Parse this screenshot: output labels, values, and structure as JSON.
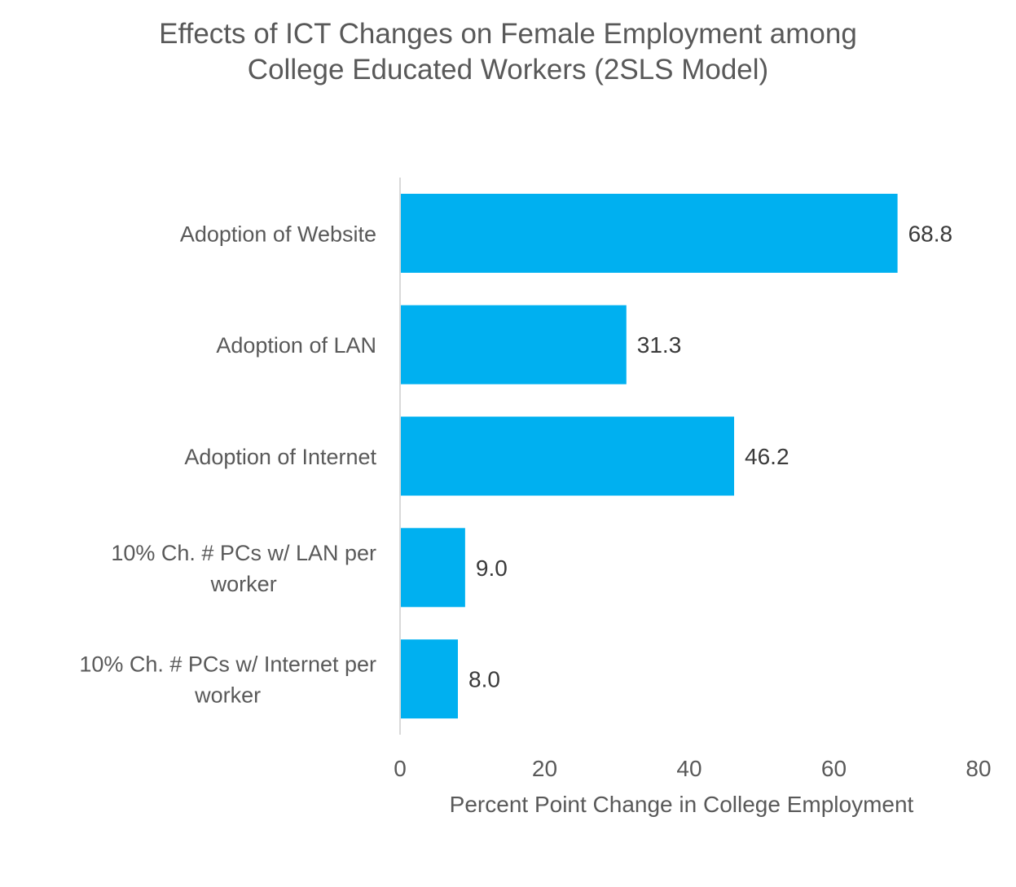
{
  "chart_data": {
    "type": "bar",
    "orientation": "horizontal",
    "title_lines": [
      "Effects of ICT Changes on Female Employment among",
      "College Educated Workers (2SLS Model)"
    ],
    "categories": [
      [
        "Adoption of Website"
      ],
      [
        "Adoption of LAN"
      ],
      [
        "Adoption of Internet"
      ],
      [
        "10% Ch. # PCs w/ LAN per",
        "worker"
      ],
      [
        "10% Ch. # PCs w/ Internet per",
        "worker"
      ]
    ],
    "values": [
      68.8,
      31.3,
      46.2,
      9.0,
      8.0
    ],
    "value_labels": [
      "68.8",
      "31.3",
      "46.2",
      "9.0",
      "8.0"
    ],
    "xlim": [
      0,
      80
    ],
    "xticks": [
      "0",
      "20",
      "40",
      "60",
      "80"
    ],
    "xlabel": "Percent Point Change in College Employment",
    "ylabel": "",
    "grid": false,
    "legend": "none",
    "bar_color": "#00B0F0"
  }
}
